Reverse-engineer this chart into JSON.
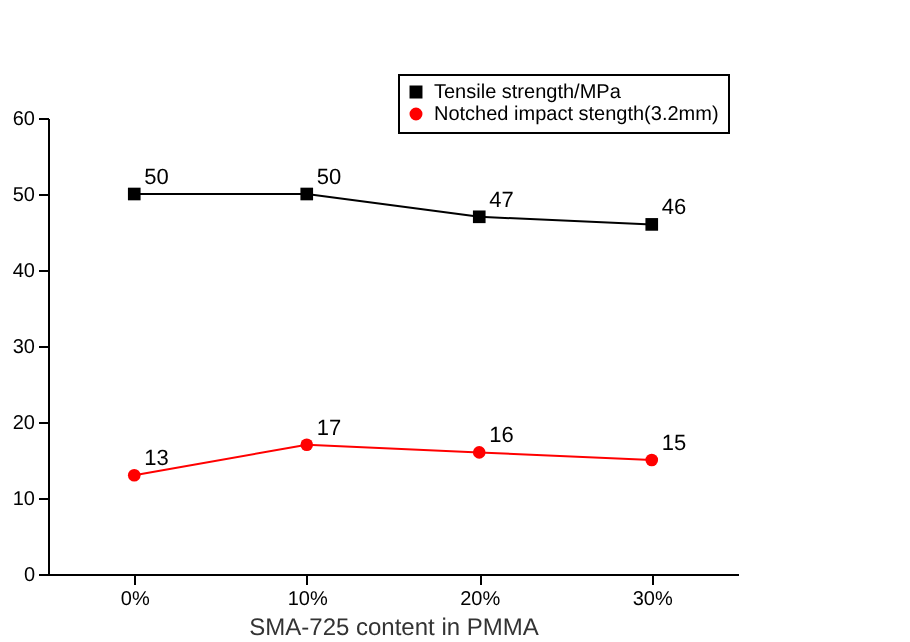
{
  "chart_data": {
    "type": "line",
    "xlabel": "SMA-725 content in PMMA",
    "categories": [
      "0%",
      "10%",
      "20%",
      "30%"
    ],
    "series": [
      {
        "name": "Tensile strength/MPa",
        "color": "#000000",
        "marker": "square",
        "values": [
          50,
          50,
          47,
          46
        ]
      },
      {
        "name": "Notched impact stength(3.2mm)",
        "color": "#ff0000",
        "marker": "circle",
        "values": [
          13,
          17,
          16,
          15
        ]
      }
    ],
    "ylim": [
      0,
      60
    ],
    "yticks": [
      0,
      10,
      20,
      30,
      40,
      50,
      60
    ],
    "grid": false,
    "legend": "top right",
    "data_labels": true,
    "line_style": "solid"
  }
}
